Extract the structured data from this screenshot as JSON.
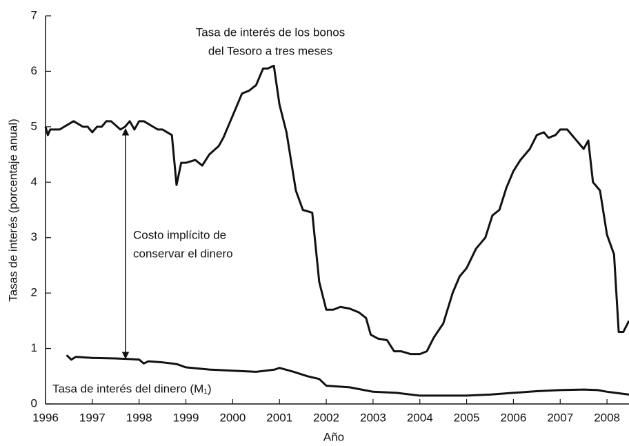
{
  "chart_data": {
    "type": "line",
    "xlabel": "Año",
    "ylabel": "Tasas de interés (porcentaje anual)",
    "annotations": [
      {
        "text": "Tasa de interés de los bonos"
      },
      {
        "text": "del Tesoro a tres meses"
      },
      {
        "text": "Costo implícito de"
      },
      {
        "text": "conservar el dinero"
      },
      {
        "text": "Tasa de interés del dinero (M₁)"
      }
    ],
    "xlim": [
      1996,
      2008.47
    ],
    "xticks": [
      1996,
      1997,
      1998,
      1999,
      2000,
      2001,
      2002,
      2003,
      2004,
      2005,
      2006,
      2007,
      2008
    ],
    "ylim": [
      0,
      7
    ],
    "yticks": [
      0,
      1,
      2,
      3,
      4,
      5,
      6,
      7
    ],
    "series": [
      {
        "color": "#111111",
        "x": [
          1996.0,
          1996.05,
          1996.1,
          1996.3,
          1996.5,
          1996.6,
          1996.7,
          1996.8,
          1996.9,
          1997.0,
          1997.1,
          1997.2,
          1997.3,
          1997.4,
          1997.6,
          1997.7,
          1997.8,
          1997.9,
          1998.0,
          1998.1,
          1998.2,
          1998.3,
          1998.4,
          1998.5,
          1998.6,
          1998.7,
          1998.8,
          1998.9,
          1999.0,
          1999.2,
          1999.35,
          1999.5,
          1999.7,
          1999.8,
          2000.0,
          2000.2,
          2000.35,
          2000.5,
          2000.65,
          2000.75,
          2000.88,
          2001.0,
          2001.15,
          2001.35,
          2001.5,
          2001.7,
          2001.85,
          2002.0,
          2002.15,
          2002.3,
          2002.5,
          2002.7,
          2002.85,
          2002.95,
          2003.1,
          2003.3,
          2003.45,
          2003.6,
          2003.8,
          2004.0,
          2004.15,
          2004.3,
          2004.5,
          2004.7,
          2004.85,
          2005.0,
          2005.2,
          2005.4,
          2005.55,
          2005.7,
          2005.85,
          2006.0,
          2006.15,
          2006.35,
          2006.5,
          2006.65,
          2006.75,
          2006.9,
          2007.0,
          2007.15,
          2007.3,
          2007.5,
          2007.6,
          2007.7,
          2007.85,
          2008.0,
          2008.15,
          2008.25,
          2008.35,
          2008.47
        ],
        "values": [
          5.0,
          4.85,
          4.95,
          4.95,
          5.05,
          5.1,
          5.05,
          5.0,
          5.0,
          4.9,
          5.0,
          5.0,
          5.1,
          5.1,
          4.95,
          5.0,
          5.1,
          4.95,
          5.1,
          5.1,
          5.05,
          5.0,
          4.95,
          4.95,
          4.9,
          4.85,
          3.95,
          4.35,
          4.35,
          4.4,
          4.3,
          4.5,
          4.65,
          4.8,
          5.2,
          5.6,
          5.65,
          5.75,
          6.05,
          6.05,
          6.1,
          5.4,
          4.9,
          3.85,
          3.5,
          3.45,
          2.2,
          1.7,
          1.7,
          1.75,
          1.72,
          1.65,
          1.55,
          1.25,
          1.18,
          1.15,
          0.95,
          0.95,
          0.9,
          0.9,
          0.95,
          1.2,
          1.45,
          2.0,
          2.3,
          2.45,
          2.8,
          3.0,
          3.4,
          3.5,
          3.9,
          4.2,
          4.4,
          4.6,
          4.85,
          4.9,
          4.8,
          4.85,
          4.95,
          4.95,
          4.8,
          4.6,
          4.75,
          4.0,
          3.85,
          3.05,
          2.7,
          1.3,
          1.3,
          1.5
        ]
      },
      {
        "color": "#111111",
        "x": [
          1996.45,
          1996.55,
          1996.65,
          1997.0,
          1997.5,
          1997.8,
          1998.0,
          1998.1,
          1998.2,
          1998.5,
          1998.8,
          1999.0,
          1999.5,
          2000.0,
          2000.5,
          2000.9,
          2001.0,
          2001.3,
          2001.6,
          2001.85,
          2002.0,
          2002.5,
          2003.0,
          2003.5,
          2004.0,
          2004.5,
          2005.0,
          2005.5,
          2006.0,
          2006.5,
          2007.0,
          2007.5,
          2007.8,
          2008.0,
          2008.47
        ],
        "values": [
          0.88,
          0.8,
          0.85,
          0.83,
          0.82,
          0.81,
          0.8,
          0.73,
          0.77,
          0.75,
          0.72,
          0.66,
          0.62,
          0.6,
          0.58,
          0.62,
          0.65,
          0.58,
          0.5,
          0.45,
          0.33,
          0.3,
          0.22,
          0.2,
          0.15,
          0.15,
          0.15,
          0.17,
          0.2,
          0.23,
          0.25,
          0.26,
          0.25,
          0.22,
          0.17
        ]
      }
    ]
  }
}
